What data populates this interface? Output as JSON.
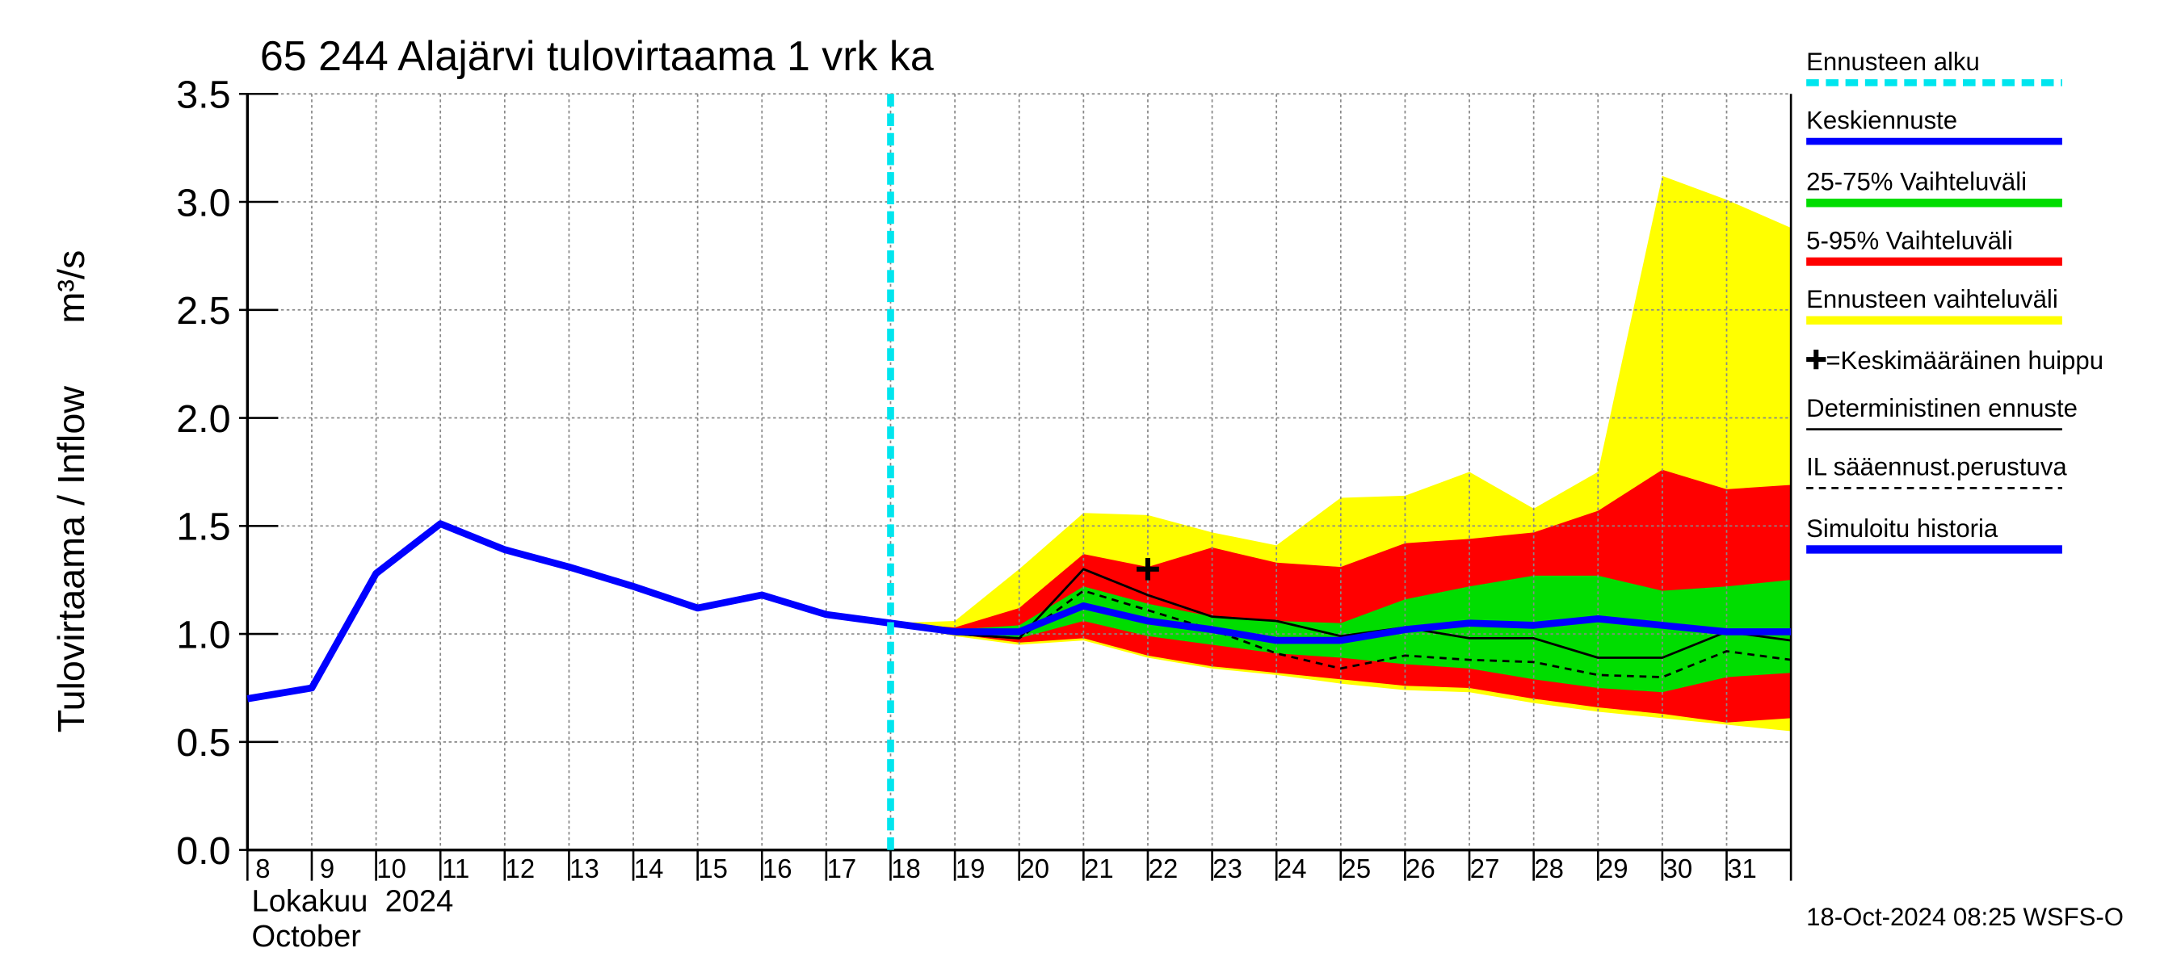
{
  "chart_data": {
    "type": "line",
    "title": "65 244 Alajärvi tulovirtaama 1 vrk ka",
    "ylabel": "Tulovirtaama / Inflow",
    "yunit": "m³/s",
    "xlabel_month": "Lokakuu  2024",
    "xlabel_month_en": "October",
    "footer": "18-Oct-2024 08:25 WSFS-O",
    "xlim": [
      8,
      32
    ],
    "ylim": [
      0,
      3.5
    ],
    "xticks": [
      8,
      9,
      10,
      11,
      12,
      13,
      14,
      15,
      16,
      17,
      18,
      19,
      20,
      21,
      22,
      23,
      24,
      25,
      26,
      27,
      28,
      29,
      30,
      31
    ],
    "yticks": [
      {
        "value": 0,
        "label": "0.0"
      },
      0.5,
      {
        "value": 1,
        "label": "1.0"
      },
      1.5,
      {
        "value": 2,
        "label": "2.0"
      },
      2.5,
      {
        "value": 3,
        "label": "3.0"
      },
      3.5
    ],
    "grid": true,
    "forecast_start": {
      "name": "Ennusteen alku",
      "x": 18,
      "color": "#00e5ee"
    },
    "bands": [
      {
        "name": "Ennusteen vaihteluväli",
        "color": "#ffff00",
        "x": [
          18,
          19,
          20,
          21,
          22,
          23,
          24,
          25,
          26,
          27,
          28,
          29,
          30,
          31,
          32
        ],
        "low": [
          1.05,
          0.99,
          0.95,
          0.97,
          0.89,
          0.84,
          0.81,
          0.77,
          0.74,
          0.73,
          0.68,
          0.64,
          0.61,
          0.58,
          0.55
        ],
        "high": [
          1.05,
          1.06,
          1.3,
          1.56,
          1.55,
          1.47,
          1.41,
          1.63,
          1.64,
          1.75,
          1.58,
          1.75,
          3.12,
          3.01,
          2.88
        ]
      },
      {
        "name": "5-95% Vaihteluväli",
        "color": "#ff0000",
        "x": [
          18,
          19,
          20,
          21,
          22,
          23,
          24,
          25,
          26,
          27,
          28,
          29,
          30,
          31,
          32
        ],
        "low": [
          1.05,
          1.0,
          0.96,
          0.98,
          0.9,
          0.85,
          0.82,
          0.79,
          0.76,
          0.75,
          0.7,
          0.66,
          0.63,
          0.59,
          0.61
        ],
        "high": [
          1.05,
          1.03,
          1.12,
          1.37,
          1.31,
          1.4,
          1.33,
          1.31,
          1.42,
          1.44,
          1.47,
          1.57,
          1.76,
          1.67,
          1.69
        ]
      },
      {
        "name": "25-75% Vaihteluväli",
        "color": "#00dd00",
        "x": [
          18,
          19,
          20,
          21,
          22,
          23,
          24,
          25,
          26,
          27,
          28,
          29,
          30,
          31,
          32
        ],
        "low": [
          1.05,
          1.0,
          0.98,
          1.06,
          0.99,
          0.95,
          0.91,
          0.89,
          0.86,
          0.84,
          0.79,
          0.75,
          0.73,
          0.8,
          0.82
        ],
        "high": [
          1.05,
          1.02,
          1.04,
          1.22,
          1.14,
          1.08,
          1.06,
          1.05,
          1.16,
          1.22,
          1.27,
          1.27,
          1.2,
          1.22,
          1.25
        ]
      }
    ],
    "series": [
      {
        "name": "Keskiennuste",
        "color": "#0000ff",
        "width": 5,
        "dashed": false,
        "x": [
          18,
          19,
          20,
          21,
          22,
          23,
          24,
          25,
          26,
          27,
          28,
          29,
          30,
          31,
          32
        ],
        "values": [
          1.05,
          1.01,
          1.01,
          1.13,
          1.06,
          1.02,
          0.97,
          0.97,
          1.02,
          1.05,
          1.04,
          1.07,
          1.04,
          1.01,
          1.01
        ]
      },
      {
        "name": "Deterministinen ennuste",
        "color": "#000000",
        "width": 1.6,
        "dashed": false,
        "x": [
          18,
          19,
          20,
          21,
          22,
          23,
          24,
          25,
          26,
          27,
          28,
          29,
          30,
          31,
          32
        ],
        "values": [
          1.05,
          1.0,
          0.98,
          1.3,
          1.18,
          1.08,
          1.06,
          0.99,
          1.03,
          0.98,
          0.98,
          0.89,
          0.89,
          1.01,
          0.97
        ]
      },
      {
        "name": "IL sääennust.perustuva",
        "color": "#000000",
        "width": 1.6,
        "dashed": true,
        "x": [
          18,
          19,
          20,
          21,
          22,
          23,
          24,
          25,
          26,
          27,
          28,
          29,
          30,
          31,
          32
        ],
        "values": [
          1.05,
          1.0,
          0.98,
          1.2,
          1.11,
          1.02,
          0.91,
          0.84,
          0.9,
          0.88,
          0.87,
          0.81,
          0.8,
          0.92,
          0.88
        ]
      },
      {
        "name": "Simuloitu historia",
        "color": "#0000ff",
        "width": 5,
        "dashed": false,
        "x": [
          8,
          9,
          10,
          11,
          12,
          13,
          14,
          15,
          16,
          17,
          18
        ],
        "values": [
          0.7,
          0.75,
          1.28,
          1.51,
          1.39,
          1.31,
          1.22,
          1.12,
          1.18,
          1.09,
          1.05
        ]
      }
    ],
    "peak": {
      "name": "=Keskimääräinen huippu",
      "x": 22,
      "y": 1.3
    }
  }
}
